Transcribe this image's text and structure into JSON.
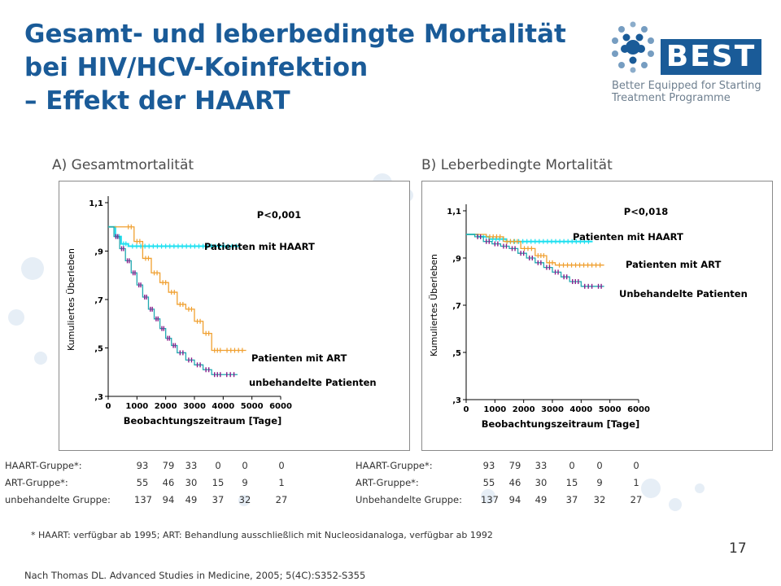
{
  "title": {
    "line1": "Gesamt- und leberbedingte Mortalität",
    "line2": "bei HIV/HCV-Koinfektion",
    "line3": "– Effekt der HAART"
  },
  "logo": {
    "word": "BEST",
    "tagline_line1": "Better Equipped for Starting",
    "tagline_line2": "Treatment Programme"
  },
  "colors": {
    "title": "#1a5b98",
    "haart": "#1fe0f0",
    "art": "#f0a030",
    "untreated_curve": "#20a8b0",
    "untreated_marks": "#8a1e8a"
  },
  "chart_data": [
    {
      "type": "line",
      "panel_title": "A) Gesamtmortalität",
      "ylabel": "Kumuliertes Überleben",
      "xlabel": "Beobachtungszeitraum [Tage]",
      "xlim": [
        0,
        6000
      ],
      "ylim": [
        0.3,
        1.1
      ],
      "x_ticks": [
        "0",
        "1000",
        "2000",
        "3000",
        "4000",
        "5000",
        "6000"
      ],
      "y_ticks": [
        ",3",
        ",5",
        ",7",
        ",9",
        "1,1"
      ],
      "p_value": "P<0,001",
      "series": [
        {
          "name": "Patienten mit HAART",
          "x": [
            0,
            250,
            450,
            700,
            4600
          ],
          "y": [
            1.0,
            0.96,
            0.93,
            0.92,
            0.92
          ]
        },
        {
          "name": "Patienten mit ART",
          "x": [
            0,
            600,
            900,
            1200,
            1500,
            1800,
            2100,
            2400,
            2700,
            3000,
            3300,
            3600,
            4000,
            4800
          ],
          "y": [
            1.0,
            1.0,
            0.94,
            0.87,
            0.81,
            0.77,
            0.73,
            0.68,
            0.66,
            0.61,
            0.56,
            0.49,
            0.49,
            0.49
          ]
        },
        {
          "name": "unbehandelte Patienten",
          "x": [
            0,
            200,
            400,
            600,
            800,
            1000,
            1200,
            1400,
            1600,
            1800,
            2000,
            2200,
            2400,
            2700,
            3000,
            3300,
            3600,
            4000,
            4500
          ],
          "y": [
            1.0,
            0.96,
            0.91,
            0.86,
            0.81,
            0.76,
            0.71,
            0.66,
            0.62,
            0.58,
            0.54,
            0.51,
            0.48,
            0.45,
            0.43,
            0.41,
            0.39,
            0.39,
            0.39
          ]
        }
      ],
      "annotations": [
        "Patienten mit HAART",
        "Patienten mit ART",
        "unbehandelte Patienten"
      ]
    },
    {
      "type": "line",
      "panel_title": "B) Leberbedingte Mortalität",
      "ylabel": "Kumuliertes Überleben",
      "xlabel": "Beobachtungszeitraum [Tage]",
      "xlim": [
        0,
        6000
      ],
      "ylim": [
        0.3,
        1.1
      ],
      "x_ticks": [
        "0",
        "1000",
        "2000",
        "3000",
        "4000",
        "5000",
        "6000"
      ],
      "y_ticks": [
        ",3",
        ",5",
        ",7",
        ",9",
        "1,1"
      ],
      "p_value": "P<0,018",
      "series": [
        {
          "name": "Patienten mit HAART",
          "x": [
            0,
            400,
            800,
            1400,
            4400
          ],
          "y": [
            1.0,
            0.99,
            0.98,
            0.97,
            0.97
          ]
        },
        {
          "name": "Patienten mit ART",
          "x": [
            0,
            700,
            1300,
            1900,
            2400,
            2800,
            3100,
            4800
          ],
          "y": [
            1.0,
            0.99,
            0.97,
            0.94,
            0.91,
            0.88,
            0.87,
            0.87
          ]
        },
        {
          "name": "Unbehandelte Patienten",
          "x": [
            0,
            300,
            600,
            900,
            1200,
            1500,
            1800,
            2100,
            2400,
            2700,
            3000,
            3300,
            3600,
            4000,
            4500,
            4800
          ],
          "y": [
            1.0,
            0.99,
            0.97,
            0.96,
            0.95,
            0.94,
            0.92,
            0.9,
            0.88,
            0.86,
            0.84,
            0.82,
            0.8,
            0.78,
            0.78,
            0.78
          ]
        }
      ],
      "annotations": [
        "Patienten mit HAART",
        "Patienten mit ART",
        "Unbehandelte Patienten"
      ]
    }
  ],
  "tables": {
    "left": [
      {
        "label": "HAART-Gruppe*:",
        "values": [
          "93",
          "79",
          "33",
          "0",
          "0",
          "0"
        ]
      },
      {
        "label": "ART-Gruppe*:",
        "values": [
          "55",
          "46",
          "30",
          "15",
          "9",
          "1"
        ]
      },
      {
        "label": "unbehandelte Gruppe:",
        "values": [
          "137",
          "94",
          "49",
          "37",
          "32",
          "27"
        ]
      }
    ],
    "right": [
      {
        "label": "HAART-Gruppe*:",
        "values": [
          "93",
          "79",
          "33",
          "0",
          "0",
          "0"
        ]
      },
      {
        "label": "ART-Gruppe*:",
        "values": [
          "55",
          "46",
          "30",
          "15",
          "9",
          "1"
        ]
      },
      {
        "label": "Unbehandelte Gruppe:",
        "values": [
          "137",
          "94",
          "49",
          "37",
          "32",
          "27"
        ]
      }
    ]
  },
  "footnote": "* HAART: verfügbar ab 1995; ART: Behandlung ausschließlich mit Nucleosidanaloga, verfügbar ab 1992",
  "page_number": "17",
  "source": "Nach Thomas DL. Advanced Studies in Medicine, 2005; 5(4C):S352-S355"
}
